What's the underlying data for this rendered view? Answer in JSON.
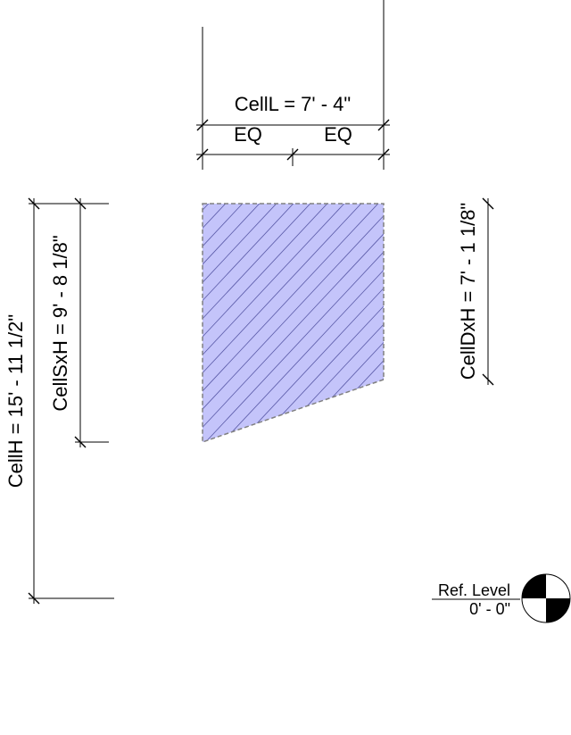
{
  "dimensions": {
    "cell_length": "CellL = 7' - 4\"",
    "eq_left": "EQ",
    "eq_right": "EQ",
    "cell_height": "CellH = 15' - 11 1/2\"",
    "cell_left_height": "CellSxH = 9' - 8 1/8\"",
    "cell_right_height": "CellDxH = 7' - 1 1/8\""
  },
  "level": {
    "name": "Ref. Level",
    "elevation": "0' - 0\""
  },
  "colors": {
    "fill": "#c4c4fa",
    "hatch": "#5a5aa8",
    "outline": "#808080",
    "lines": "#000000"
  }
}
